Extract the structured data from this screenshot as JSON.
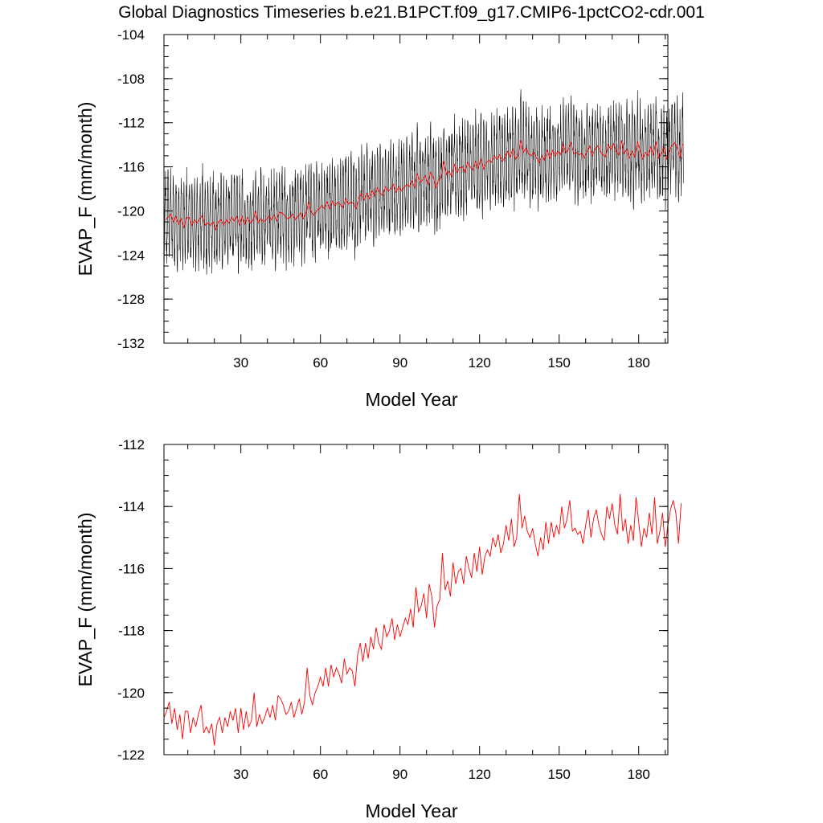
{
  "title": "Global Diagnostics Timeseries b.e21.B1PCT.f09_g17.CMIP6-1pctCO2-cdr.001",
  "colors": {
    "monthly": "#000000",
    "annual": "#ff0000",
    "frame": "#000000"
  },
  "chart_data": [
    {
      "type": "line",
      "xlabel": "Model Year",
      "ylabel": "EVAP_F (mm/month)",
      "xlim": [
        1,
        191
      ],
      "ylim": [
        -132,
        -104
      ],
      "xticks": [
        30,
        60,
        90,
        120,
        150,
        180
      ],
      "yticks": [
        -132,
        -128,
        -124,
        -120,
        -116,
        -112,
        -108,
        -104
      ],
      "grid": false,
      "series": [
        {
          "kind": "monthly",
          "color": "#000000",
          "annual_cycle_amplitude": 3.3,
          "annual_mean_anchors": [
            [
              1,
              -120.8
            ],
            [
              20,
              -121.0
            ],
            [
              40,
              -120.6
            ],
            [
              60,
              -119.8
            ],
            [
              80,
              -118.6
            ],
            [
              100,
              -117.4
            ],
            [
              120,
              -116.0
            ],
            [
              135,
              -115.0
            ],
            [
              150,
              -114.8
            ],
            [
              170,
              -114.6
            ],
            [
              190,
              -114.4
            ]
          ],
          "range_min": -129.0,
          "range_max": -107.6
        },
        {
          "kind": "annual",
          "color": "#ff0000",
          "x": [
            1,
            191
          ],
          "values_ref": "chart_data.1.series.0.values"
        }
      ]
    },
    {
      "type": "line",
      "xlabel": "Model Year",
      "ylabel": "EVAP_F (mm/month)",
      "xlim": [
        1,
        191
      ],
      "ylim": [
        -122,
        -112
      ],
      "xticks": [
        30,
        60,
        90,
        120,
        150,
        180
      ],
      "yticks": [
        -122,
        -120,
        -118,
        -116,
        -114,
        -112
      ],
      "grid": false,
      "series": [
        {
          "kind": "annual",
          "color": "#ff0000",
          "x_start": 1,
          "x_step": 1,
          "values": [
            -120.8,
            -120.6,
            -120.3,
            -121.0,
            -120.5,
            -121.2,
            -120.7,
            -121.5,
            -120.6,
            -120.6,
            -121.3,
            -120.8,
            -121.1,
            -120.7,
            -120.4,
            -121.3,
            -121.1,
            -121.3,
            -121.0,
            -121.7,
            -121.0,
            -120.8,
            -121.3,
            -120.8,
            -121.1,
            -120.6,
            -120.9,
            -120.5,
            -121.3,
            -120.5,
            -121.2,
            -120.6,
            -121.1,
            -120.9,
            -120.0,
            -121.1,
            -120.7,
            -121.0,
            -120.8,
            -120.5,
            -120.8,
            -120.4,
            -120.9,
            -120.1,
            -120.2,
            -120.4,
            -120.7,
            -120.6,
            -120.3,
            -120.8,
            -120.5,
            -120.2,
            -120.7,
            -120.3,
            -119.2,
            -120.1,
            -120.4,
            -120.0,
            -119.8,
            -119.5,
            -119.8,
            -119.2,
            -119.8,
            -119.1,
            -119.5,
            -119.2,
            -119.4,
            -119.7,
            -118.9,
            -119.4,
            -119.2,
            -119.3,
            -119.8,
            -118.8,
            -118.4,
            -119.0,
            -118.4,
            -118.9,
            -118.2,
            -118.6,
            -117.9,
            -118.4,
            -118.6,
            -117.8,
            -118.2,
            -118.0,
            -117.6,
            -118.3,
            -117.8,
            -118.2,
            -117.9,
            -117.6,
            -117.8,
            -117.3,
            -117.9,
            -116.6,
            -117.4,
            -117.2,
            -116.8,
            -117.6,
            -116.5,
            -116.9,
            -117.9,
            -117.2,
            -117.0,
            -115.5,
            -116.7,
            -116.4,
            -116.9,
            -115.8,
            -116.5,
            -116.1,
            -116.0,
            -116.5,
            -115.6,
            -116.0,
            -116.3,
            -115.5,
            -116.1,
            -115.3,
            -116.2,
            -115.6,
            -115.4,
            -115.6,
            -115.0,
            -115.3,
            -114.9,
            -115.5,
            -115.2,
            -114.6,
            -115.1,
            -114.4,
            -115.3,
            -115.0,
            -113.6,
            -114.7,
            -114.3,
            -114.8,
            -115.0,
            -114.7,
            -115.2,
            -115.6,
            -115.0,
            -115.4,
            -114.5,
            -115.2,
            -114.5,
            -115.0,
            -114.6,
            -114.9,
            -114.0,
            -114.7,
            -114.4,
            -113.8,
            -114.8,
            -114.7,
            -114.9,
            -114.8,
            -115.2,
            -114.6,
            -114.1,
            -115.0,
            -114.4,
            -114.1,
            -114.6,
            -114.9,
            -115.1,
            -114.0,
            -114.4,
            -113.9,
            -114.6,
            -114.9,
            -113.6,
            -114.8,
            -114.4,
            -115.2,
            -114.6,
            -115.1,
            -113.7,
            -114.5,
            -115.3,
            -114.7,
            -115.0,
            -114.2,
            -114.9,
            -113.7,
            -115.2,
            -114.8,
            -114.2,
            -115.3,
            -114.6,
            -114.1,
            -113.8,
            -114.2,
            -115.2,
            -113.9
          ]
        }
      ]
    }
  ]
}
